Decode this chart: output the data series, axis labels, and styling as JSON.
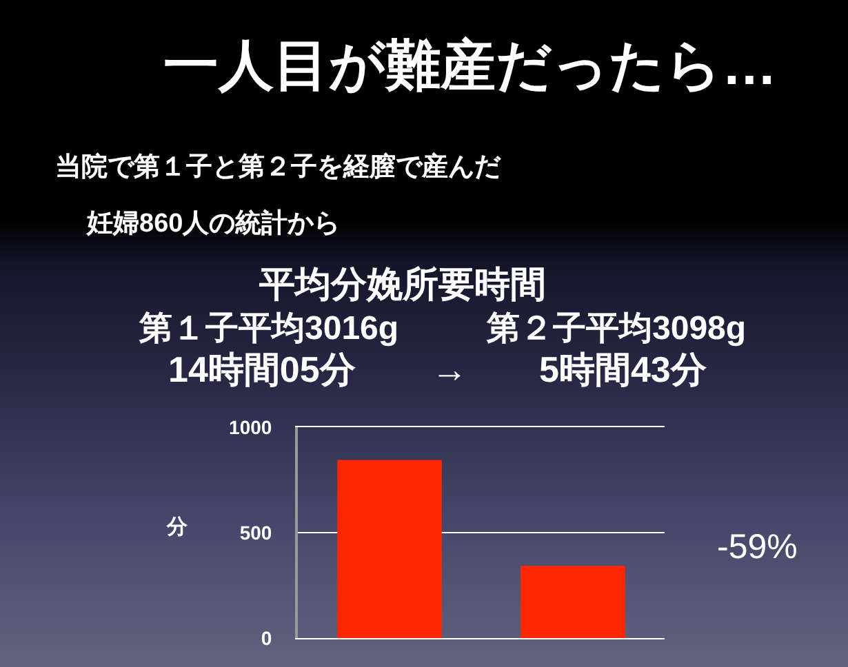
{
  "chart_data": {
    "type": "bar",
    "title": "一人目が難産だったら…",
    "subtitle": "当院で第１子と第２子を経膣で産んだ",
    "ylabel": "分",
    "annotations": [
      "妊婦860人の統計から",
      "平均分娩所要時間",
      "第１子平均3016g",
      "第２子平均3098g",
      "14時間05分",
      "→",
      "5時間43分",
      "-59%"
    ],
    "categories": [
      null,
      null
    ],
    "values": [
      845,
      343
    ],
    "color": "#ff2600",
    "ylim": [
      0,
      1000
    ],
    "yticks": [
      0,
      500,
      1000
    ],
    "grid": "y",
    "tick_labels": "y"
  }
}
